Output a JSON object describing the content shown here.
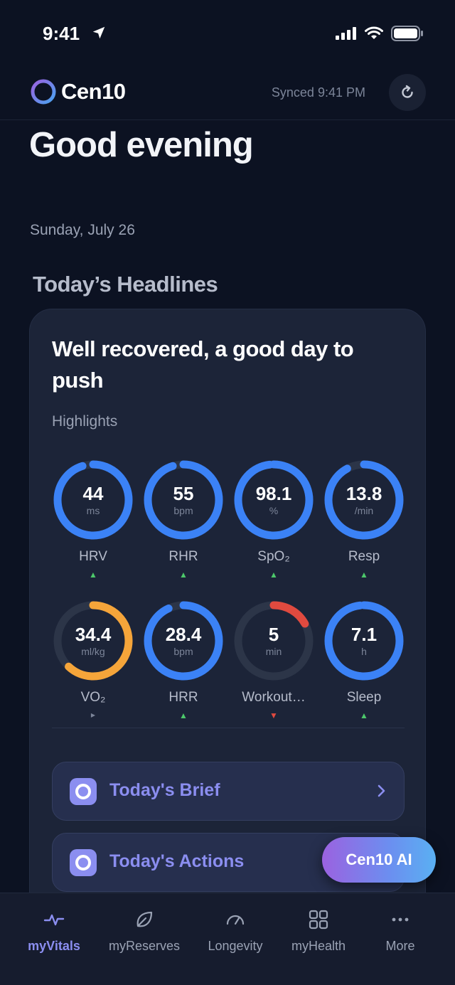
{
  "status_bar": {
    "time": "9:41"
  },
  "header": {
    "app_name": "Cen10",
    "synced_label": "Synced",
    "synced_time": "9:41 PM"
  },
  "greeting": "Good evening",
  "date": "Sunday, July 26",
  "section_title": "Today’s Headlines",
  "card": {
    "headline": "Well recovered, a good day to push",
    "subtitle": "Highlights"
  },
  "metrics": [
    {
      "value": "44",
      "unit": "ms",
      "label": "HRV",
      "trend": "up",
      "fraction": 0.95,
      "color": "#3b82f6"
    },
    {
      "value": "55",
      "unit": "bpm",
      "label": "RHR",
      "trend": "up",
      "fraction": 0.95,
      "color": "#3b82f6"
    },
    {
      "value": "98.1",
      "unit": "%",
      "label": "SpO₂",
      "trend": "up",
      "fraction": 0.98,
      "color": "#3b82f6"
    },
    {
      "value": "13.8",
      "unit": "/min",
      "label": "Resp",
      "trend": "up",
      "fraction": 0.92,
      "color": "#3b82f6"
    },
    {
      "value": "34.4",
      "unit": "ml/kg",
      "label": "VO₂",
      "trend": "flat",
      "fraction": 0.62,
      "color": "#f5a53a"
    },
    {
      "value": "28.4",
      "unit": "bpm",
      "label": "HRR",
      "trend": "up",
      "fraction": 0.93,
      "color": "#3b82f6"
    },
    {
      "value": "5",
      "unit": "min",
      "label": "Workout…",
      "trend": "down",
      "fraction": 0.17,
      "color": "#e04a3f"
    },
    {
      "value": "7.1",
      "unit": "h",
      "label": "Sleep",
      "trend": "up",
      "fraction": 0.98,
      "color": "#3b82f6"
    }
  ],
  "brief": {
    "label": "Today's Brief"
  },
  "actions": {
    "label": "Today's Actions"
  },
  "ai_button": {
    "label": "Cen10 AI"
  },
  "tabs": [
    {
      "label": "myVitals",
      "icon": "pulse-icon"
    },
    {
      "label": "myReserves",
      "icon": "leaf-icon"
    },
    {
      "label": "Longevity",
      "icon": "gauge-icon"
    },
    {
      "label": "myHealth",
      "icon": "grid-icon"
    },
    {
      "label": "More",
      "icon": "more-icon"
    }
  ],
  "colors": {
    "accent": "#8b8ef0",
    "background": "#0c1222",
    "card": "#1c2438",
    "ring_track": "#2c3548"
  }
}
